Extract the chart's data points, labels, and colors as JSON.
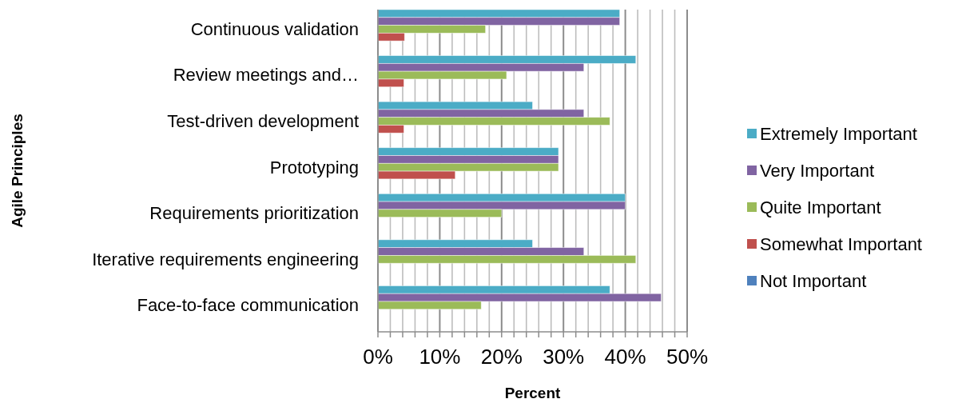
{
  "chart_data": {
    "type": "bar",
    "orientation": "horizontal",
    "xlabel": "Percent",
    "ylabel": "Agile Principles",
    "categories": [
      "Continuous validation",
      "Review meetings and…",
      "Test-driven development",
      "Prototyping",
      "Requirements prioritization",
      "Iterative requirements engineering",
      "Face-to-face communication"
    ],
    "series": [
      {
        "name": "Extremely Important",
        "color": "#4bacc6",
        "values": [
          39.1,
          41.7,
          25,
          29.2,
          40,
          25,
          37.5
        ]
      },
      {
        "name": "Very Important",
        "color": "#8064a2",
        "values": [
          39.1,
          33.3,
          33.3,
          29.2,
          40,
          33.3,
          45.8
        ]
      },
      {
        "name": "Quite Important",
        "color": "#9bbb59",
        "values": [
          17.4,
          20.8,
          37.5,
          29.2,
          20,
          41.7,
          16.7
        ]
      },
      {
        "name": "Somewhat Important",
        "color": "#c0504d",
        "values": [
          4.3,
          4.2,
          4.2,
          12.5,
          0,
          0,
          0
        ]
      },
      {
        "name": "Not Important",
        "color": "#4f81bd",
        "values": [
          0,
          0,
          0,
          0,
          0,
          0,
          0
        ]
      }
    ],
    "xlim": [
      0,
      50
    ],
    "xticks": [
      {
        "value": 0,
        "label": "0%"
      },
      {
        "value": 2,
        "label": null
      },
      {
        "value": 4,
        "label": null
      },
      {
        "value": 6,
        "label": null
      },
      {
        "value": 8,
        "label": null
      },
      {
        "value": 10,
        "label": "10%"
      },
      {
        "value": 12,
        "label": null
      },
      {
        "value": 14,
        "label": null
      },
      {
        "value": 16,
        "label": null
      },
      {
        "value": 18,
        "label": null
      },
      {
        "value": 20,
        "label": "20%"
      },
      {
        "value": 22,
        "label": null
      },
      {
        "value": 24,
        "label": null
      },
      {
        "value": 26,
        "label": null
      },
      {
        "value": 28,
        "label": null
      },
      {
        "value": 30,
        "label": "30%"
      },
      {
        "value": 32,
        "label": null
      },
      {
        "value": 34,
        "label": null
      },
      {
        "value": 36,
        "label": null
      },
      {
        "value": 38,
        "label": null
      },
      {
        "value": 40,
        "label": "40%"
      },
      {
        "value": 42,
        "label": null
      },
      {
        "value": 44,
        "label": null
      },
      {
        "value": 46,
        "label": null
      },
      {
        "value": 48,
        "label": null
      },
      {
        "value": 50,
        "label": "50%"
      }
    ],
    "grid": "x",
    "legend": "right"
  }
}
